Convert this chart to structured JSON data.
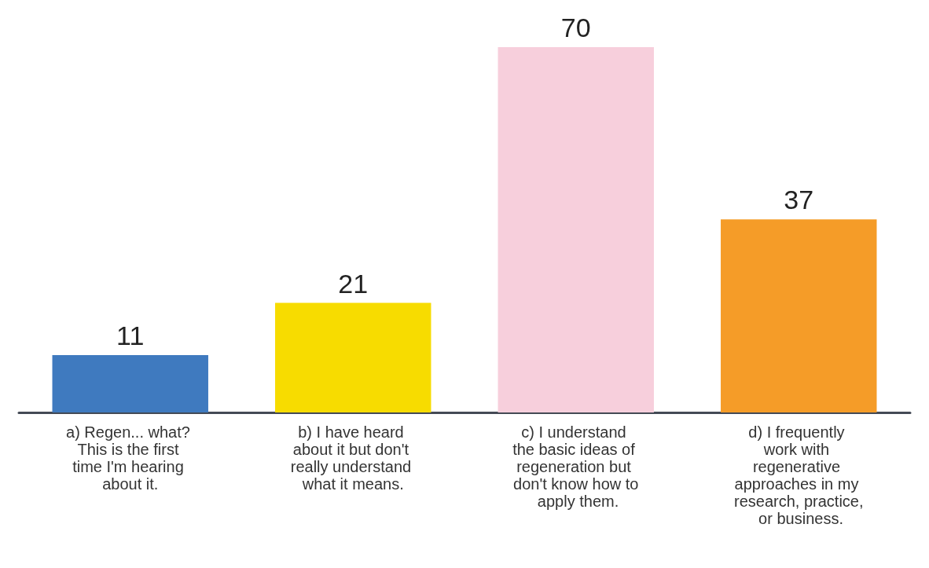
{
  "chart_data": {
    "type": "bar",
    "categories": [
      "a) Regen... what? This is the first time I'm hearing about it.",
      "b) I have heard about it but don't really understand what it means.",
      "c) I understand the basic ideas of regeneration but don't know how to apply them.",
      "d) I frequently work with regenerative approaches in my research, practice, or business."
    ],
    "values": [
      11,
      21,
      70,
      37
    ],
    "colors": [
      "#3f7abf",
      "#f7dc00",
      "#f7cfdc",
      "#f59c28"
    ],
    "data_labels": true
  }
}
